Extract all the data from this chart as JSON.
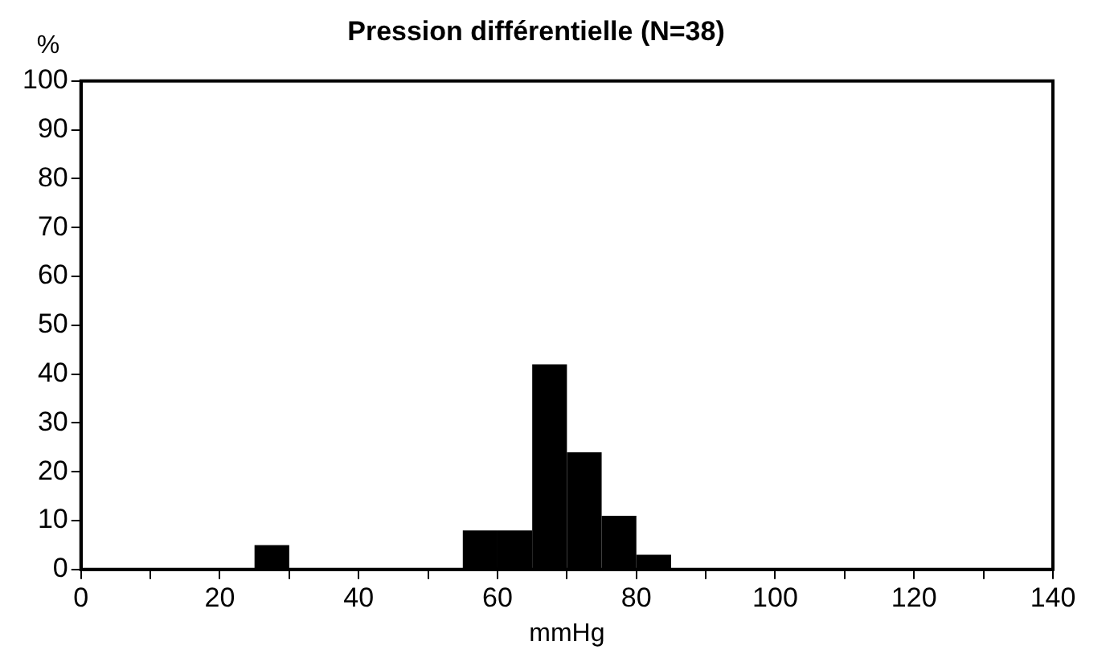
{
  "chart_data": {
    "type": "histogram",
    "title": "Pression différentielle (N=38)",
    "xlabel": "mmHg",
    "ylabel": "%",
    "bins": [
      25,
      30,
      35,
      40,
      45,
      50,
      55,
      60,
      65,
      70,
      75,
      80,
      85
    ],
    "values": [
      5,
      0,
      0,
      0,
      0,
      0,
      8,
      8,
      42,
      24,
      11,
      3
    ],
    "color": "#000000",
    "xlim": [
      0,
      140
    ],
    "xticks": [
      0,
      {
        "value": 10,
        "label": null
      },
      20,
      {
        "value": 30,
        "label": null
      },
      40,
      {
        "value": 50,
        "label": null
      },
      60,
      {
        "value": 70,
        "label": null
      },
      80,
      {
        "value": 90,
        "label": null
      },
      100,
      {
        "value": 110,
        "label": null
      },
      120,
      {
        "value": 130,
        "label": null
      },
      140
    ],
    "ylim": [
      0,
      100
    ],
    "yticks": [
      0,
      10,
      20,
      30,
      40,
      50,
      60,
      70,
      80,
      90,
      100
    ],
    "grid": false,
    "legend": false
  }
}
